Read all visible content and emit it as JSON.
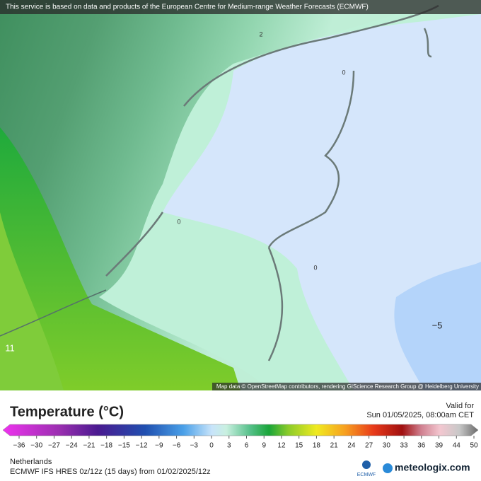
{
  "header": {
    "attribution": "This service is based on data and products of the European Centre for Medium-range Weather Forecasts (ECMWF)"
  },
  "map": {
    "credit": "Map data © OpenStreetMap contributors, rendering GIScience Research Group @ Heidelberg University",
    "contour_labels": [
      "2",
      "0",
      "0",
      "0",
      "−5",
      "11"
    ]
  },
  "legend": {
    "title": "Temperature (°C)",
    "valid_label": "Valid for",
    "valid_time": "Sun 01/05/2025, 08:00am CET",
    "ticks": [
      "−36",
      "−30",
      "−27",
      "−24",
      "−21",
      "−18",
      "−15",
      "−12",
      "−9",
      "−6",
      "−3",
      "0",
      "3",
      "6",
      "9",
      "12",
      "15",
      "18",
      "21",
      "24",
      "27",
      "30",
      "33",
      "36",
      "39",
      "44",
      "50"
    ]
  },
  "footer": {
    "region": "Netherlands",
    "model": "ECMWF IFS HRES 0z/12z (15 days) from  01/02/2025/12z",
    "ecmwf_logo": "ECMWF",
    "brand": "meteologix.com"
  }
}
